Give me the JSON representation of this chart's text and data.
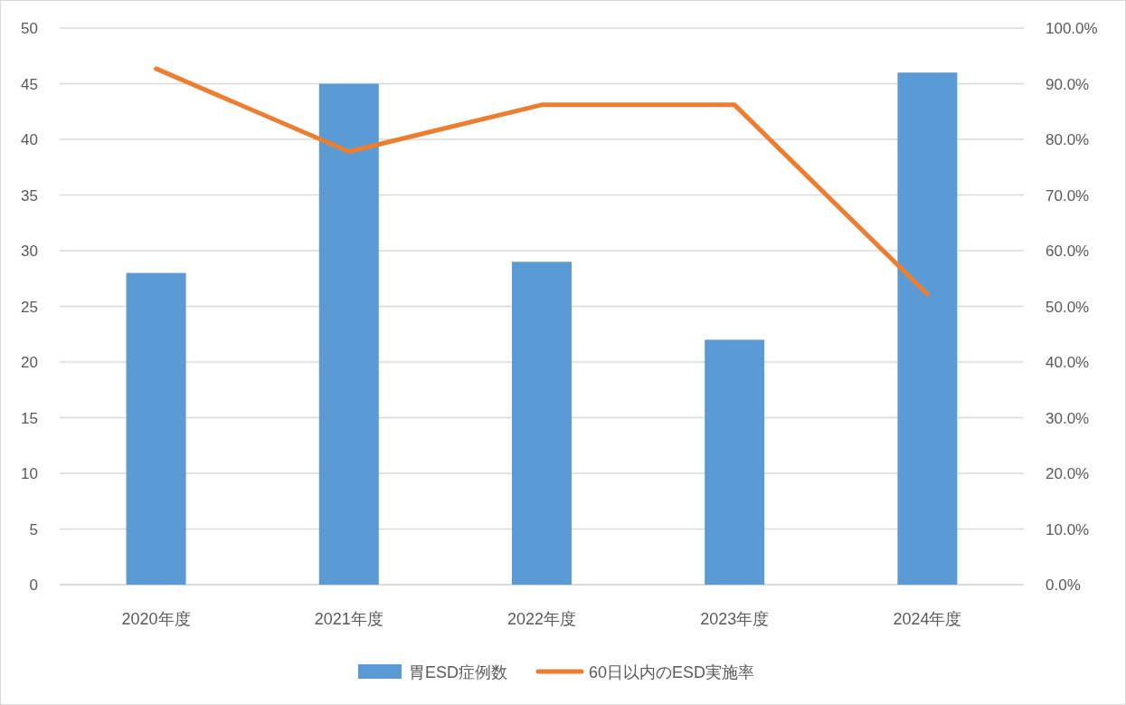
{
  "chart_data": {
    "type": "bar",
    "categories": [
      "2020年度",
      "2021年度",
      "2022年度",
      "2023年度",
      "2024年度"
    ],
    "series": [
      {
        "name": "胃ESD症例数",
        "color": "#5b9bd5",
        "values": [
          28,
          45,
          29,
          22,
          46
        ]
      },
      {
        "name": "60日以内のESD実施率",
        "type": "line",
        "axis": "y2",
        "color": "#ed7d31",
        "values": [
          92.7,
          77.8,
          86.2,
          86.2,
          52.2
        ]
      }
    ],
    "ylim": [
      0,
      50
    ],
    "yticks": [
      0,
      5,
      10,
      15,
      20,
      25,
      30,
      35,
      40,
      45,
      50
    ],
    "y2lim": [
      0,
      100
    ],
    "y2ticks": [
      {
        "value": 0,
        "label": "0.0%"
      },
      {
        "value": 10,
        "label": "10.0%"
      },
      {
        "value": 20,
        "label": "20.0%"
      },
      {
        "value": 30,
        "label": "30.0%"
      },
      {
        "value": 40,
        "label": "40.0%"
      },
      {
        "value": 50,
        "label": "50.0%"
      },
      {
        "value": 60,
        "label": "60.0%"
      },
      {
        "value": 70,
        "label": "70.0%"
      },
      {
        "value": 80,
        "label": "80.0%"
      },
      {
        "value": 90,
        "label": "90.0%"
      },
      {
        "value": 100,
        "label": "100.0%"
      }
    ],
    "grid": "y",
    "legend": "bottom",
    "marker": "none",
    "line_style": "solid"
  }
}
